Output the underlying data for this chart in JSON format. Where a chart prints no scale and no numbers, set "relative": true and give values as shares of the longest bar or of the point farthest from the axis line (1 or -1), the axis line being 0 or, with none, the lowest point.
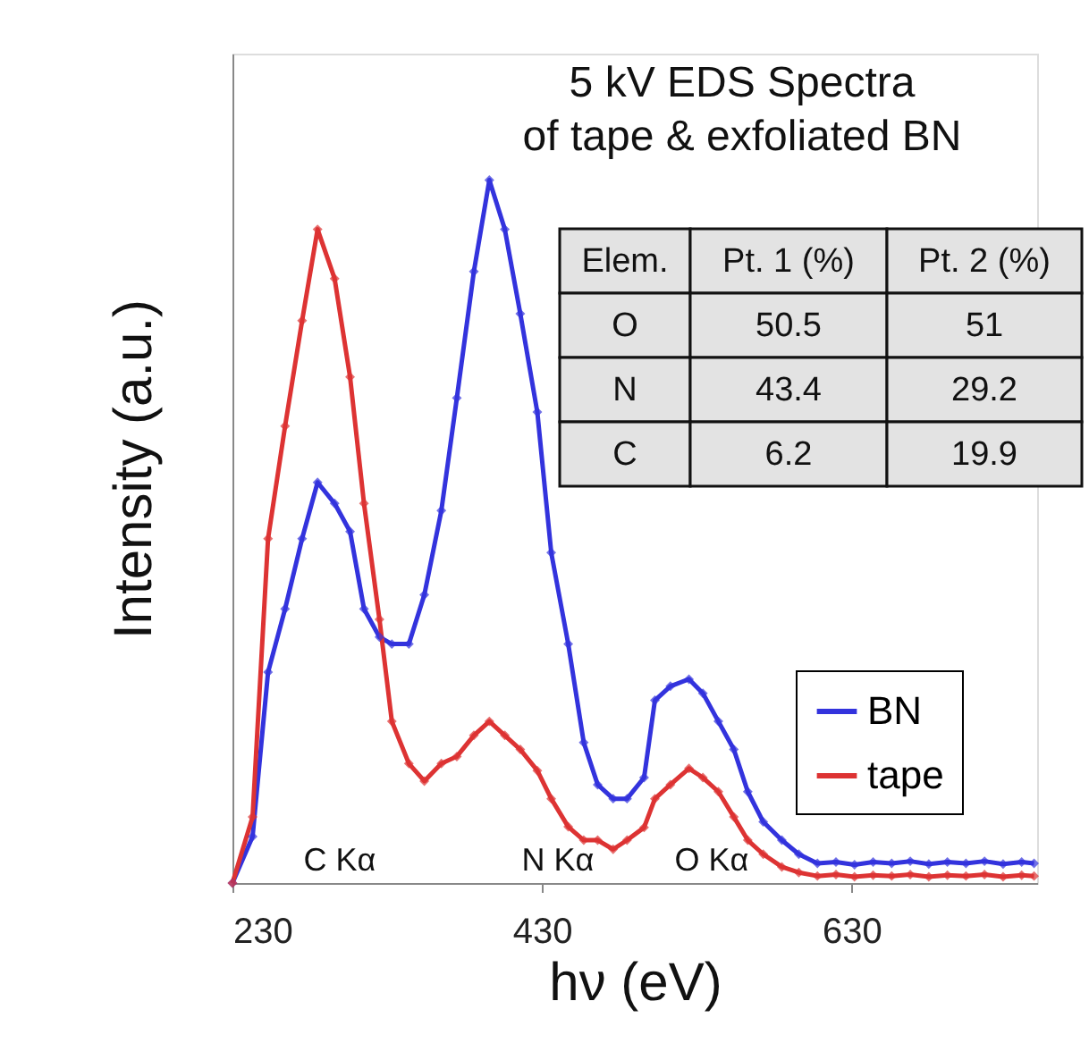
{
  "chart_data": {
    "type": "line",
    "title": "5 kV EDS Spectra\nof tape & exfoliated BN",
    "xlabel": "hν (eV)",
    "ylabel": "Intensity (a.u.)",
    "relative": true,
    "xlim": [
      230,
      750
    ],
    "xticks": [
      230,
      430,
      630
    ],
    "tick_labels": "x",
    "marker": "diamond",
    "line_style": "solid",
    "grid": false,
    "legend": "right",
    "series": [
      {
        "name": "BN",
        "color": "#3333dd",
        "x": [
          230,
          243,
          253,
          264,
          275,
          285,
          296,
          306,
          315,
          325,
          333,
          344,
          354,
          365,
          375,
          386,
          396,
          406,
          416,
          427,
          436,
          447,
          457,
          466,
          476,
          485,
          496,
          503,
          513,
          525,
          534,
          544,
          554,
          563,
          573,
          585,
          596,
          608,
          620,
          632,
          644,
          656,
          668,
          680,
          692,
          704,
          716,
          728,
          740,
          748
        ],
        "values": [
          0,
          0.066,
          0.3,
          0.39,
          0.49,
          0.57,
          0.54,
          0.5,
          0.39,
          0.35,
          0.34,
          0.34,
          0.41,
          0.53,
          0.69,
          0.87,
          1.0,
          0.93,
          0.81,
          0.67,
          0.47,
          0.34,
          0.2,
          0.14,
          0.12,
          0.12,
          0.15,
          0.26,
          0.28,
          0.29,
          0.27,
          0.23,
          0.19,
          0.13,
          0.087,
          0.061,
          0.041,
          0.028,
          0.03,
          0.026,
          0.03,
          0.028,
          0.031,
          0.027,
          0.03,
          0.028,
          0.031,
          0.027,
          0.03,
          0.028
        ]
      },
      {
        "name": "tape",
        "color": "#dd3333",
        "x": [
          230,
          243,
          253,
          264,
          275,
          285,
          296,
          306,
          315,
          325,
          333,
          344,
          354,
          365,
          375,
          386,
          396,
          406,
          416,
          427,
          436,
          447,
          457,
          466,
          476,
          485,
          496,
          503,
          513,
          525,
          534,
          544,
          554,
          563,
          573,
          585,
          596,
          608,
          620,
          632,
          644,
          656,
          668,
          680,
          692,
          704,
          716,
          728,
          740,
          748
        ],
        "values": [
          0,
          0.094,
          0.49,
          0.65,
          0.8,
          0.93,
          0.86,
          0.72,
          0.54,
          0.375,
          0.23,
          0.17,
          0.145,
          0.17,
          0.18,
          0.21,
          0.23,
          0.21,
          0.19,
          0.16,
          0.12,
          0.08,
          0.061,
          0.061,
          0.048,
          0.061,
          0.079,
          0.12,
          0.14,
          0.163,
          0.15,
          0.13,
          0.094,
          0.061,
          0.041,
          0.023,
          0.015,
          0.01,
          0.012,
          0.009,
          0.011,
          0.01,
          0.012,
          0.009,
          0.011,
          0.01,
          0.012,
          0.009,
          0.011,
          0.01
        ]
      }
    ],
    "annotations": [
      "C Kα",
      "N Kα",
      "O Kα",
      "Elem.",
      "Pt. 1 (%)",
      "Pt. 2 (%)",
      "O",
      "50.5",
      "51",
      "N",
      "43.4",
      "29.2",
      "C",
      "6.2",
      "19.9"
    ]
  }
}
